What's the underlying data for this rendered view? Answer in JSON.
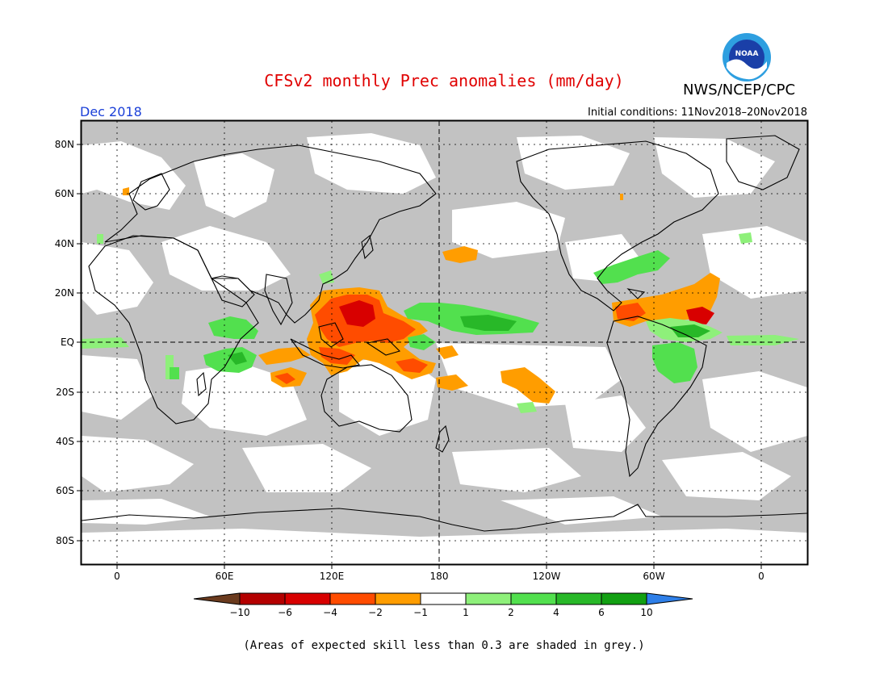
{
  "title": "CFSv2 monthly Prec anomalies (mm/day)",
  "org": "NWS/NCEP/CPC",
  "logo_text": "NOAA",
  "month": "Dec 2018",
  "initial_conditions": "Initial conditions: 11Nov2018–20Nov2018",
  "footnote": "(Areas of expected skill less than 0.3 are shaded in grey.)",
  "map": {
    "lat_labels": [
      "80N",
      "60N",
      "40N",
      "20N",
      "EQ",
      "20S",
      "40S",
      "60S",
      "80S"
    ],
    "lon_labels": [
      "0",
      "60E",
      "120E",
      "180",
      "120W",
      "60W",
      "0"
    ],
    "colors": {
      "grey_skill": "#c2c2c2",
      "land_line": "#000000"
    }
  },
  "legend": {
    "labels": [
      "−10",
      "−6",
      "−4",
      "−2",
      "−1",
      "1",
      "2",
      "4",
      "6",
      "10"
    ],
    "colors": [
      "#6b3b1e",
      "#b40000",
      "#d80000",
      "#ff4c00",
      "#ff9d00",
      "#ffffff",
      "#8ef07a",
      "#52e04e",
      "#28b828",
      "#12a012",
      "#2e7fe8"
    ]
  }
}
